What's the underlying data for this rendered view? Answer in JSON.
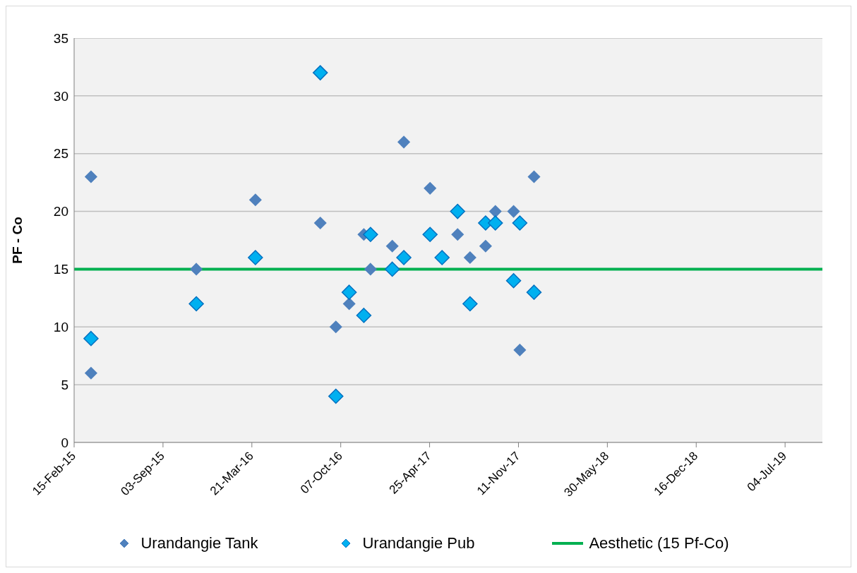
{
  "chart_data": {
    "type": "scatter",
    "ylabel": "PF - Co",
    "xlim": [
      "2015-02-15",
      "2019-09-26"
    ],
    "xticks": [
      {
        "value": "2015-02-15",
        "label": "15-Feb-15"
      },
      {
        "value": "2015-09-03",
        "label": "03-Sep-15"
      },
      {
        "value": "2016-03-21",
        "label": "21-Mar-16"
      },
      {
        "value": "2016-10-07",
        "label": "07-Oct-16"
      },
      {
        "value": "2017-04-25",
        "label": "25-Apr-17"
      },
      {
        "value": "2017-11-11",
        "label": "11-Nov-17"
      },
      {
        "value": "2018-05-30",
        "label": "30-May-18"
      },
      {
        "value": "2018-12-16",
        "label": "16-Dec-18"
      },
      {
        "value": "2019-07-04",
        "label": "04-Jul-19"
      }
    ],
    "ylim": [
      0,
      35
    ],
    "yticks": [
      0,
      5,
      10,
      15,
      20,
      25,
      30,
      35
    ],
    "grid": "y",
    "legend": "bottom",
    "series": [
      {
        "name": "Urandangie Tank",
        "type": "scatter",
        "marker": "diamond",
        "color": "#4f81bd",
        "x": [
          "2015-03-25",
          "2015-03-25",
          "2015-11-17",
          "2016-03-29",
          "2016-08-22",
          "2016-09-26",
          "2016-10-26",
          "2016-11-28",
          "2016-12-13",
          "2017-01-31",
          "2017-02-26",
          "2017-04-26",
          "2017-06-27",
          "2017-07-25",
          "2017-08-29",
          "2017-09-20",
          "2017-10-31",
          "2017-11-14",
          "2017-12-16"
        ],
        "values": [
          23,
          6,
          15,
          21,
          19,
          10,
          12,
          18,
          15,
          17,
          26,
          22,
          18,
          16,
          17,
          20,
          20,
          8,
          23
        ]
      },
      {
        "name": "Urandangie Pub",
        "type": "scatter",
        "marker": "diamond",
        "color": "#00b0f0",
        "x": [
          "2015-03-25",
          "2015-11-17",
          "2016-03-29",
          "2016-08-22",
          "2016-09-26",
          "2016-10-26",
          "2016-11-28",
          "2016-12-13",
          "2017-01-31",
          "2017-02-26",
          "2017-04-26",
          "2017-05-23",
          "2017-06-27",
          "2017-07-25",
          "2017-08-29",
          "2017-09-20",
          "2017-10-31",
          "2017-11-14",
          "2017-12-16"
        ],
        "values": [
          9,
          12,
          16,
          32,
          4,
          13,
          11,
          18,
          15,
          16,
          18,
          16,
          20,
          12,
          19,
          19,
          14,
          19,
          13
        ]
      },
      {
        "name": "Aesthetic (15 Pf-Co)",
        "type": "line",
        "marker": "none",
        "line_style": "solid",
        "color": "#00b050",
        "x": [
          "2015-02-15",
          "2019-09-26"
        ],
        "values": [
          15,
          15
        ]
      }
    ]
  }
}
